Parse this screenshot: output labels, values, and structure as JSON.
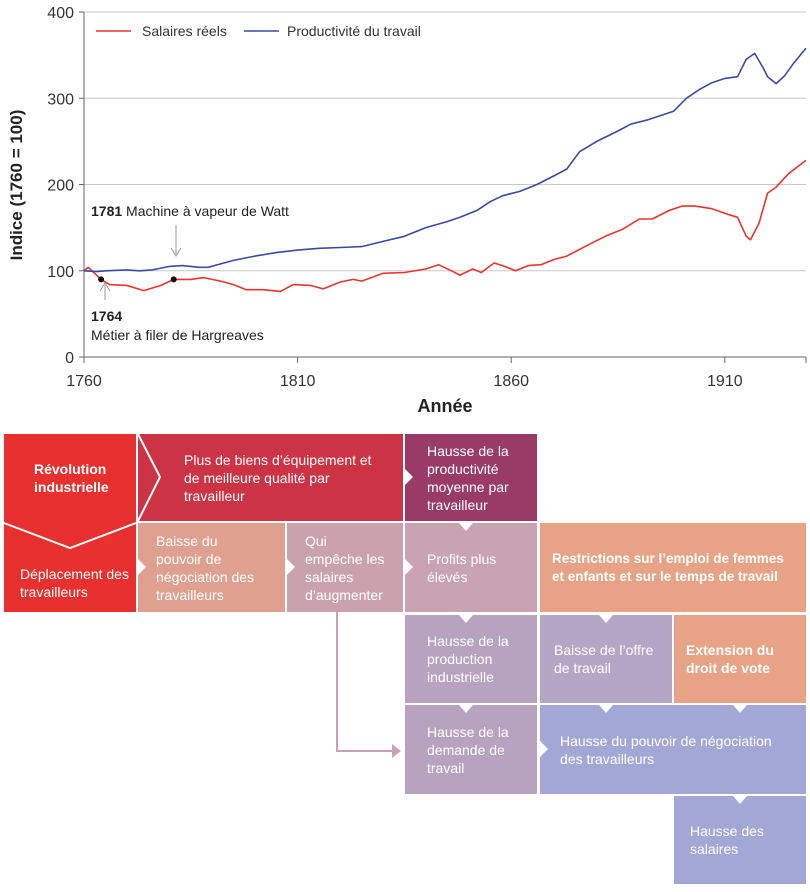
{
  "chart_data": {
    "type": "line",
    "title": "",
    "xlabel": "Année",
    "ylabel": "Indice (1760 = 100)",
    "xlim": [
      1760,
      1929
    ],
    "ylim": [
      0,
      400
    ],
    "xticks": [
      1760,
      1810,
      1860,
      1910
    ],
    "yticks": [
      0,
      100,
      200,
      300,
      400
    ],
    "grid": "horizontal",
    "legend_placement": "top-left",
    "series": [
      {
        "name": "Salaires réels",
        "color": "#e8352e",
        "x": [
          1760,
          1761,
          1764,
          1766,
          1770,
          1774,
          1778,
          1781,
          1785,
          1788,
          1792,
          1795,
          1798,
          1802,
          1806,
          1809,
          1813,
          1816,
          1820,
          1823,
          1825,
          1830,
          1835,
          1840,
          1843,
          1846,
          1848,
          1851,
          1853,
          1856,
          1858,
          1861,
          1864,
          1867,
          1870,
          1873,
          1878,
          1882,
          1886,
          1890,
          1893,
          1897,
          1900,
          1903,
          1907,
          1911,
          1913,
          1915,
          1916,
          1918,
          1920,
          1922,
          1925,
          1929
        ],
        "y": [
          100,
          104,
          90,
          84,
          83,
          77,
          83,
          90,
          90,
          92,
          88,
          84,
          78,
          78,
          76,
          84,
          83,
          79,
          87,
          90,
          88,
          97,
          98,
          102,
          107,
          100,
          95,
          102,
          98,
          109,
          106,
          100,
          106,
          107,
          113,
          117,
          130,
          140,
          148,
          160,
          160,
          170,
          175,
          175,
          172,
          165,
          162,
          140,
          136,
          155,
          190,
          197,
          213,
          228
        ]
      },
      {
        "name": "Productivité du travail",
        "color": "#3a4aa0",
        "x": [
          1760,
          1763,
          1765,
          1770,
          1773,
          1776,
          1780,
          1783,
          1787,
          1789,
          1792,
          1795,
          1800,
          1805,
          1810,
          1815,
          1820,
          1825,
          1830,
          1835,
          1840,
          1845,
          1848,
          1852,
          1855,
          1858,
          1862,
          1866,
          1870,
          1873,
          1876,
          1880,
          1885,
          1888,
          1892,
          1895,
          1898,
          1901,
          1904,
          1907,
          1910,
          1913,
          1915,
          1917,
          1919,
          1920,
          1922,
          1924,
          1926,
          1928,
          1929
        ],
        "y": [
          100,
          99,
          100,
          101,
          100,
          101,
          105,
          106,
          104,
          104,
          108,
          112,
          117,
          121,
          124,
          126,
          127,
          128,
          134,
          140,
          150,
          157,
          162,
          170,
          180,
          187,
          192,
          200,
          210,
          218,
          238,
          250,
          262,
          270,
          275,
          280,
          285,
          300,
          310,
          318,
          323,
          325,
          345,
          352,
          335,
          325,
          317,
          326,
          340,
          352,
          358
        ]
      }
    ],
    "annotations": [
      {
        "year_label": "1781",
        "text": "Machine à vapeur de Watt",
        "x": 1781,
        "y": 90
      },
      {
        "year_label": "1764",
        "text": "Métier à filer de Hargreaves",
        "x": 1764,
        "y": 90
      }
    ]
  },
  "diagram": {
    "revolution": "Révolution industrielle",
    "capital": "Plus de biens d’équipement et de meilleure qualité par travailleur",
    "productivity": "Hausse de la productivité moyenne par travailleur",
    "displacement": "Déplacement des travailleurs",
    "lower_power": "Baisse du pouvoir de négociation des travailleurs",
    "prevents": "Qui empêche les salaires d’augmenter",
    "profits": "Profits plus élevés",
    "restrictions": "Restrictions sur l’emploi de femmes et enfants et sur le temps de travail",
    "production": "Hausse de la production industrielle",
    "supply": "Baisse de l’offre de travail",
    "vote": "Extension du droit de vote",
    "demand": "Hausse de la demande de travail",
    "higher_power": "Hausse du pouvoir de négociation des travailleurs",
    "wages": "Hausse des salaires"
  },
  "colors": {
    "red": "#e8302e",
    "crimson": "#cc3345",
    "plum": "#9a3a66",
    "salmon": "#e0a090",
    "mauve": "#c9a2b0",
    "orange": "#e8a386",
    "lilac": "#b6a4c2",
    "periwinkle": "#a3a7d6"
  }
}
